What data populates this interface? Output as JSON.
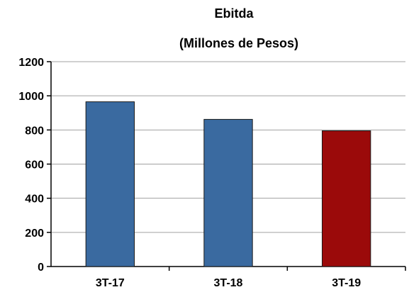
{
  "chart_data": {
    "type": "bar",
    "title": "Ebitda",
    "subtitle": "(Millones de Pesos)",
    "xlabel": "",
    "ylabel": "",
    "categories": [
      "3T-17",
      "3T-18",
      "3T-19"
    ],
    "values": [
      965,
      862,
      795
    ],
    "bar_colors": [
      "#3a6aa0",
      "#3a6aa0",
      "#9b0a0a"
    ],
    "ylim": [
      0,
      1200
    ],
    "yticks": [
      0,
      200,
      400,
      600,
      800,
      1000,
      1200
    ],
    "grid": true,
    "legend": "none"
  }
}
